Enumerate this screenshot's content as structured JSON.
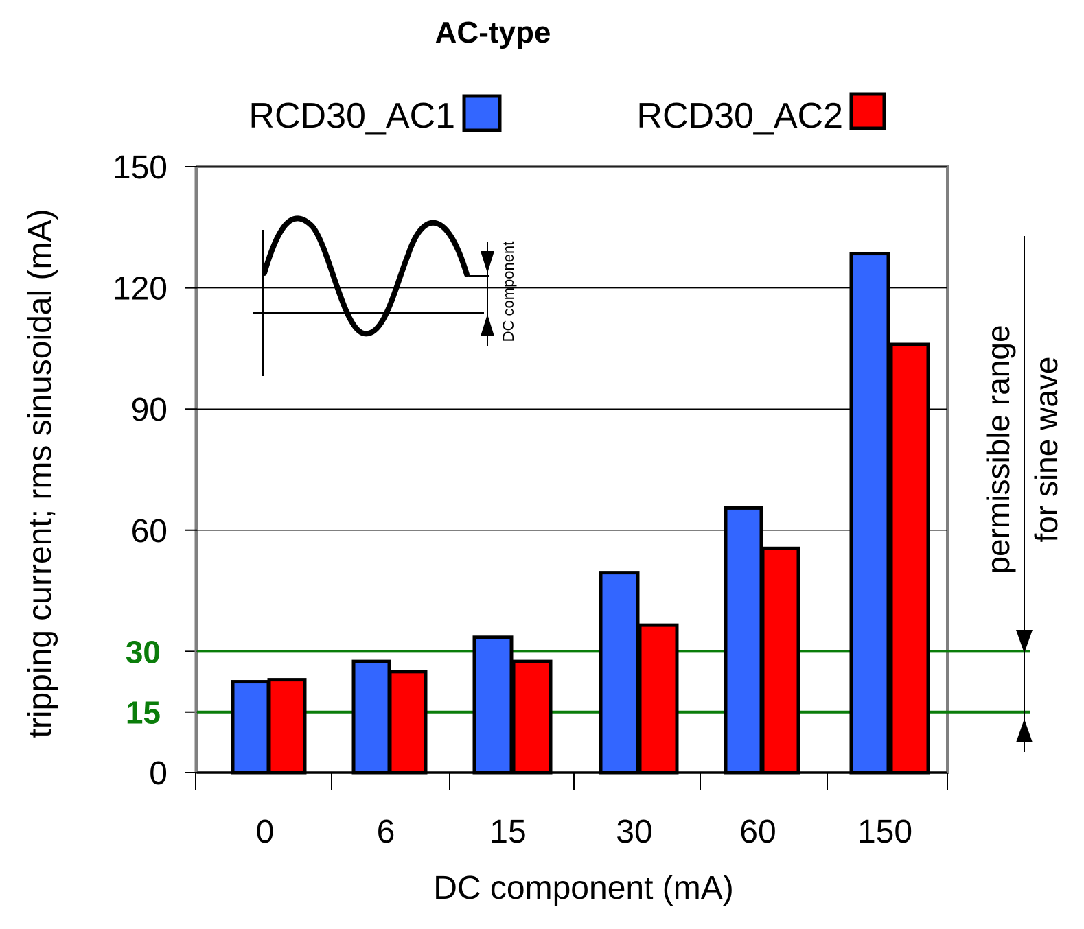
{
  "chart_data": {
    "type": "bar",
    "title": "AC-type",
    "xlabel": "DC component (mA)",
    "ylabel": "tripping current; rms sinusoidal (mA)",
    "categories": [
      "0",
      "6",
      "15",
      "30",
      "60",
      "150"
    ],
    "series": [
      {
        "name": "RCD30_AC1",
        "color": "#3366ff",
        "values": [
          22.5,
          27.5,
          33.5,
          49.5,
          65.5,
          128.5
        ]
      },
      {
        "name": "RCD30_AC2",
        "color": "#ff0000",
        "values": [
          23,
          25,
          27.5,
          36.5,
          55.5,
          106
        ]
      }
    ],
    "ylim": [
      0,
      150
    ],
    "yticks": [
      "0",
      "60",
      "90",
      "120",
      "150"
    ],
    "reference_lines": [
      {
        "value": 15,
        "label": "15",
        "color": "#0a7d0a"
      },
      {
        "value": 30,
        "label": "30",
        "color": "#0a7d0a"
      }
    ],
    "gridlines": [
      60,
      90,
      120,
      150
    ],
    "legend_position": "top",
    "grid": true,
    "side_annotation": {
      "line1": "permissible range",
      "line2": "for sine wave",
      "from": 15,
      "to": 30
    },
    "inset": {
      "label": "DC component",
      "icon": "sine-wave-icon"
    }
  }
}
